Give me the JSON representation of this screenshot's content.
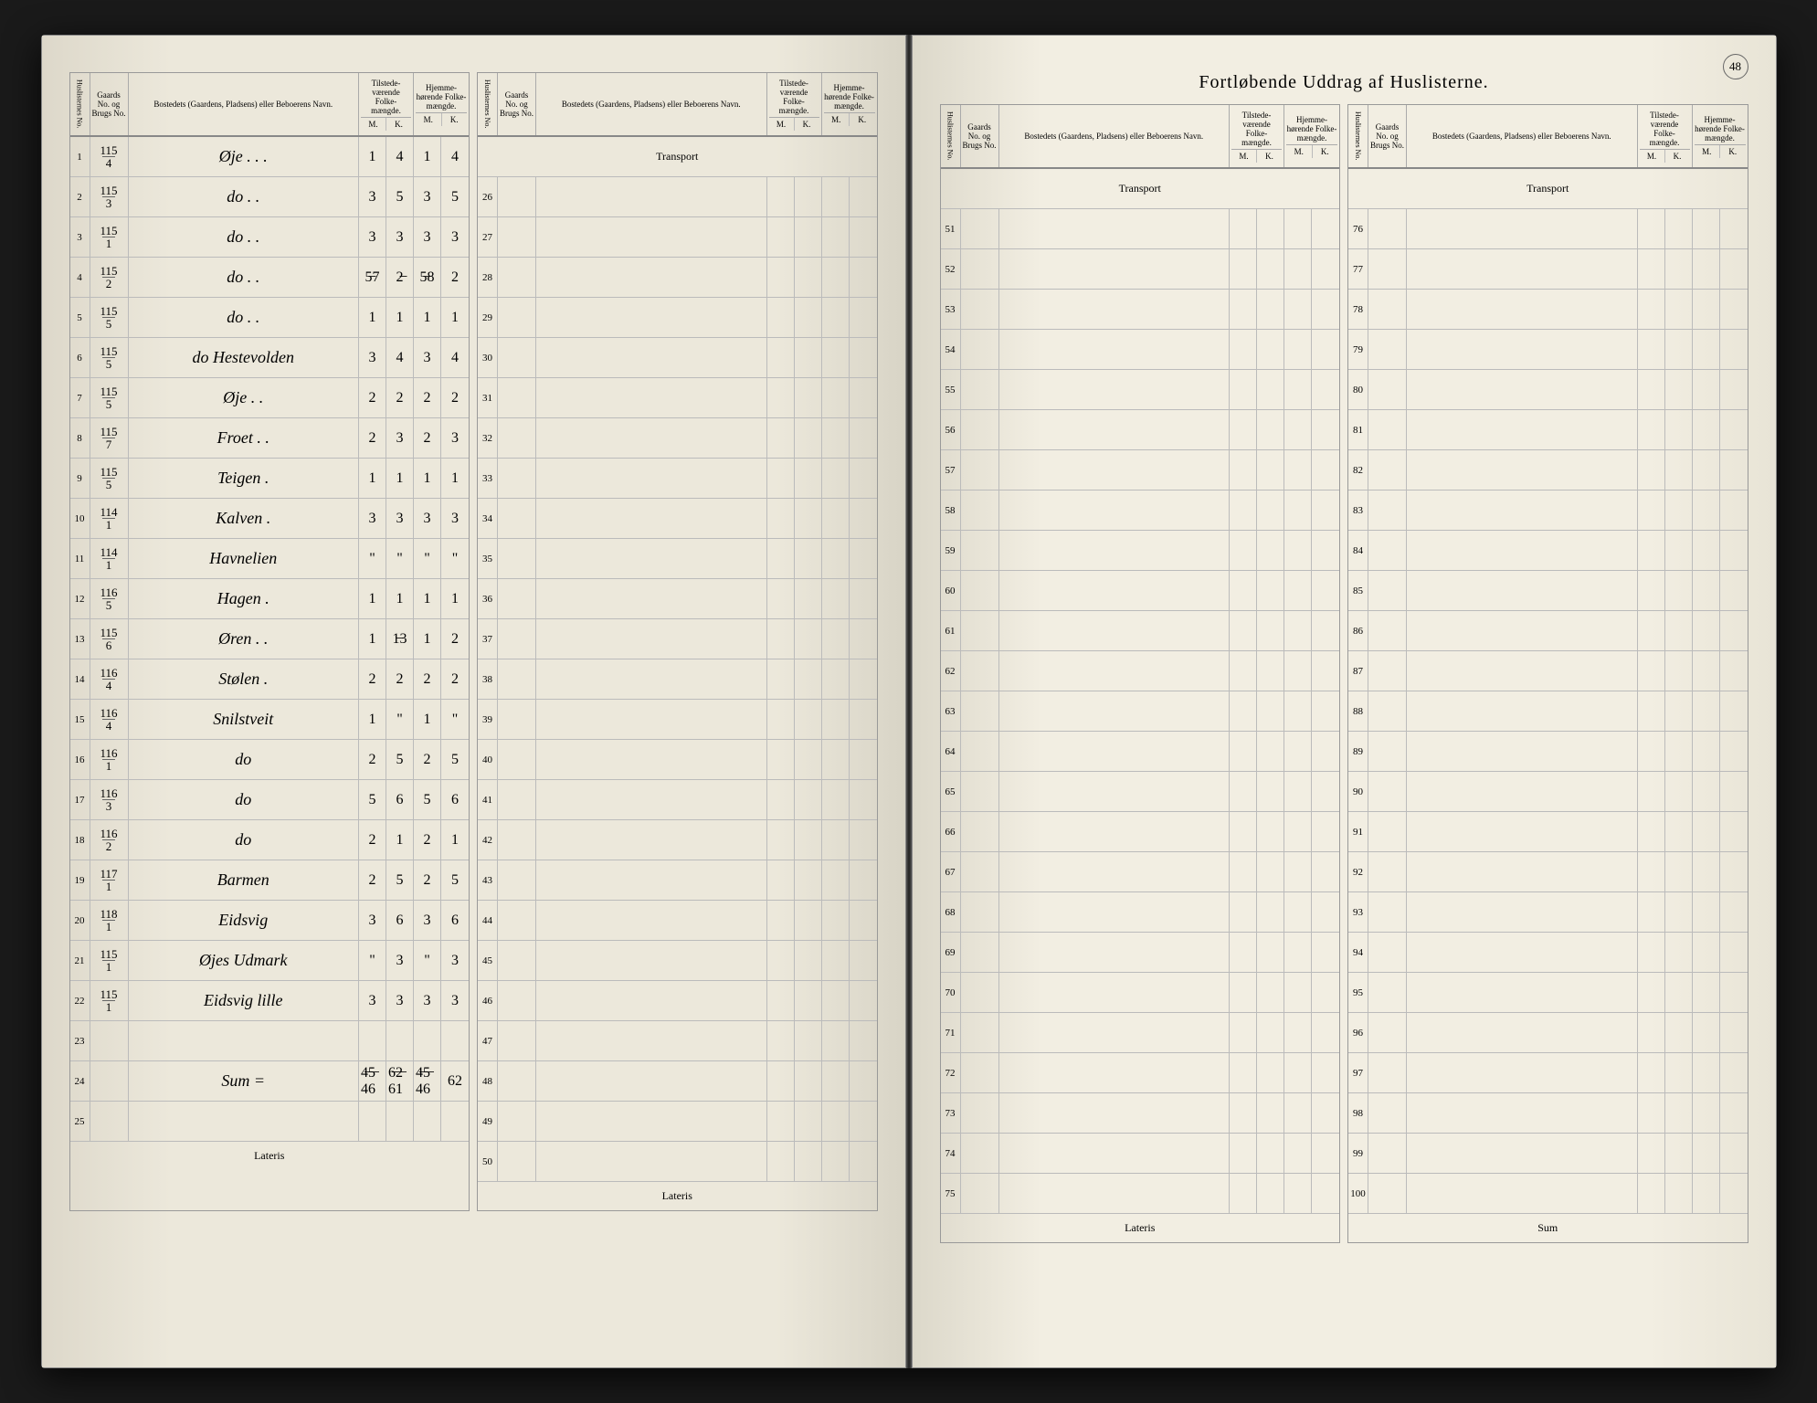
{
  "pageNumber": "48",
  "title": "Fortløbende Uddrag af Huslisterne.",
  "headers": {
    "idx": "Huslisternes No.",
    "gaard": "Gaards No. og Brugs No.",
    "name": "Bostedets (Gaardens, Pladsens) eller Beboerens Navn.",
    "tilstede": "Tilstede-værende Folke-mængde.",
    "hjemme": "Hjemme-hørende Folke-mængde.",
    "m": "M.",
    "k": "K.",
    "transport": "Transport",
    "lateris": "Lateris",
    "sum": "Sum"
  },
  "leftColumns": [
    {
      "startIdx": 1,
      "rows": [
        {
          "idx": "1",
          "gN": "115",
          "gD": "4",
          "name": "Øje . . .",
          "tm": "1",
          "tk": "4",
          "hm": "1",
          "hk": "4"
        },
        {
          "idx": "2",
          "gN": "115",
          "gD": "3",
          "name": "do . .",
          "tm": "3",
          "tk": "5",
          "hm": "3",
          "hk": "5"
        },
        {
          "idx": "3",
          "gN": "115",
          "gD": "1",
          "name": "do . .",
          "tm": "3",
          "tk": "3",
          "hm": "3",
          "hk": "3"
        },
        {
          "idx": "4",
          "gN": "115",
          "gD": "2",
          "name": "do . .",
          "tm": "5̶7",
          "tk": "2̶",
          "hm": "5̶8",
          "hk": "2"
        },
        {
          "idx": "5",
          "gN": "115",
          "gD": "5",
          "name": "do . .",
          "tm": "1",
          "tk": "1",
          "hm": "1",
          "hk": "1"
        },
        {
          "idx": "6",
          "gN": "115",
          "gD": "5",
          "name": "do Hestevolden",
          "tm": "3",
          "tk": "4",
          "hm": "3",
          "hk": "4"
        },
        {
          "idx": "7",
          "gN": "115",
          "gD": "5",
          "name": "Øje . .",
          "tm": "2",
          "tk": "2",
          "hm": "2",
          "hk": "2"
        },
        {
          "idx": "8",
          "gN": "115",
          "gD": "7",
          "name": "Froet . .",
          "tm": "2",
          "tk": "3",
          "hm": "2",
          "hk": "3"
        },
        {
          "idx": "9",
          "gN": "115",
          "gD": "5",
          "name": "Teigen .",
          "tm": "1",
          "tk": "1",
          "hm": "1",
          "hk": "1"
        },
        {
          "idx": "10",
          "gN": "114",
          "gD": "1",
          "name": "Kalven .",
          "tm": "3",
          "tk": "3",
          "hm": "3",
          "hk": "3"
        },
        {
          "idx": "11",
          "gN": "114",
          "gD": "1",
          "name": "Havnelien",
          "tm": "\"",
          "tk": "\"",
          "hm": "\"",
          "hk": "\""
        },
        {
          "idx": "12",
          "gN": "116",
          "gD": "5",
          "name": "Hagen .",
          "tm": "1",
          "tk": "1",
          "hm": "1",
          "hk": "1"
        },
        {
          "idx": "13",
          "gN": "115",
          "gD": "6",
          "name": "Øren . .",
          "tm": "1",
          "tk": "1̶3",
          "hm": "1",
          "hk": "2"
        },
        {
          "idx": "14",
          "gN": "116",
          "gD": "4",
          "name": "Stølen .",
          "tm": "2",
          "tk": "2",
          "hm": "2",
          "hk": "2"
        },
        {
          "idx": "15",
          "gN": "116",
          "gD": "4",
          "name": "Snilstveit",
          "tm": "1",
          "tk": "\"",
          "hm": "1",
          "hk": "\""
        },
        {
          "idx": "16",
          "gN": "116",
          "gD": "1",
          "name": "do",
          "tm": "2",
          "tk": "5",
          "hm": "2",
          "hk": "5"
        },
        {
          "idx": "17",
          "gN": "116",
          "gD": "3",
          "name": "do",
          "tm": "5",
          "tk": "6",
          "hm": "5",
          "hk": "6"
        },
        {
          "idx": "18",
          "gN": "116",
          "gD": "2",
          "name": "do",
          "tm": "2",
          "tk": "1",
          "hm": "2",
          "hk": "1"
        },
        {
          "idx": "19",
          "gN": "117",
          "gD": "1",
          "name": "Barmen",
          "tm": "2",
          "tk": "5",
          "hm": "2",
          "hk": "5"
        },
        {
          "idx": "20",
          "gN": "118",
          "gD": "1",
          "name": "Eidsvig",
          "tm": "3",
          "tk": "6",
          "hm": "3",
          "hk": "6"
        },
        {
          "idx": "21",
          "gN": "115",
          "gD": "1",
          "name": "Øjes Udmark",
          "tm": "\"",
          "tk": "3",
          "hm": "\"",
          "hk": "3"
        },
        {
          "idx": "22",
          "gN": "115",
          "gD": "1",
          "name": "Eidsvig lille",
          "tm": "3",
          "tk": "3",
          "hm": "3",
          "hk": "3"
        },
        {
          "idx": "23",
          "gN": "",
          "gD": "",
          "name": "",
          "tm": "",
          "tk": "",
          "hm": "",
          "hk": ""
        },
        {
          "idx": "24",
          "gN": "",
          "gD": "",
          "name": "Sum =",
          "tm": "4̶5̶ 46",
          "tk": "6̶2̶ 61",
          "hm": "4̶5̶ 46",
          "hk": "62"
        },
        {
          "idx": "25",
          "gN": "",
          "gD": "",
          "name": "",
          "tm": "",
          "tk": "",
          "hm": "",
          "hk": ""
        }
      ]
    },
    {
      "startIdx": 26,
      "rows": [
        {
          "idx": "26"
        },
        {
          "idx": "27"
        },
        {
          "idx": "28"
        },
        {
          "idx": "29"
        },
        {
          "idx": "30"
        },
        {
          "idx": "31"
        },
        {
          "idx": "32"
        },
        {
          "idx": "33"
        },
        {
          "idx": "34"
        },
        {
          "idx": "35"
        },
        {
          "idx": "36"
        },
        {
          "idx": "37"
        },
        {
          "idx": "38"
        },
        {
          "idx": "39"
        },
        {
          "idx": "40"
        },
        {
          "idx": "41"
        },
        {
          "idx": "42"
        },
        {
          "idx": "43"
        },
        {
          "idx": "44"
        },
        {
          "idx": "45"
        },
        {
          "idx": "46"
        },
        {
          "idx": "47"
        },
        {
          "idx": "48"
        },
        {
          "idx": "49"
        },
        {
          "idx": "50"
        }
      ]
    }
  ],
  "rightColumns": [
    {
      "startIdx": 51,
      "rows": [
        {
          "idx": "51"
        },
        {
          "idx": "52"
        },
        {
          "idx": "53"
        },
        {
          "idx": "54"
        },
        {
          "idx": "55"
        },
        {
          "idx": "56"
        },
        {
          "idx": "57"
        },
        {
          "idx": "58"
        },
        {
          "idx": "59"
        },
        {
          "idx": "60"
        },
        {
          "idx": "61"
        },
        {
          "idx": "62"
        },
        {
          "idx": "63"
        },
        {
          "idx": "64"
        },
        {
          "idx": "65"
        },
        {
          "idx": "66"
        },
        {
          "idx": "67"
        },
        {
          "idx": "68"
        },
        {
          "idx": "69"
        },
        {
          "idx": "70"
        },
        {
          "idx": "71"
        },
        {
          "idx": "72"
        },
        {
          "idx": "73"
        },
        {
          "idx": "74"
        },
        {
          "idx": "75"
        }
      ]
    },
    {
      "startIdx": 76,
      "rows": [
        {
          "idx": "76"
        },
        {
          "idx": "77"
        },
        {
          "idx": "78"
        },
        {
          "idx": "79"
        },
        {
          "idx": "80"
        },
        {
          "idx": "81"
        },
        {
          "idx": "82"
        },
        {
          "idx": "83"
        },
        {
          "idx": "84"
        },
        {
          "idx": "85"
        },
        {
          "idx": "86"
        },
        {
          "idx": "87"
        },
        {
          "idx": "88"
        },
        {
          "idx": "89"
        },
        {
          "idx": "90"
        },
        {
          "idx": "91"
        },
        {
          "idx": "92"
        },
        {
          "idx": "93"
        },
        {
          "idx": "94"
        },
        {
          "idx": "95"
        },
        {
          "idx": "96"
        },
        {
          "idx": "97"
        },
        {
          "idx": "98"
        },
        {
          "idx": "99"
        },
        {
          "idx": "100"
        }
      ]
    }
  ]
}
